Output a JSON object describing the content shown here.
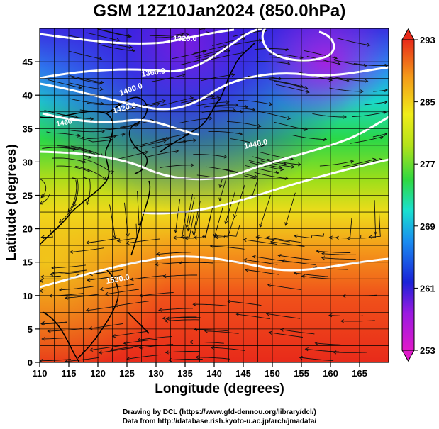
{
  "title": "GSM 12Z10Jan2024 (850.0hPa)",
  "map": {
    "xlabel": "Longitude (degrees)",
    "ylabel": "Latitude (degrees)",
    "x_ticks": [
      "110",
      "115",
      "120",
      "125",
      "130",
      "135",
      "140",
      "145",
      "150",
      "155",
      "160",
      "165"
    ],
    "y_ticks": [
      "0",
      "5",
      "10",
      "15",
      "20",
      "25",
      "30",
      "35",
      "40",
      "45"
    ],
    "xlim": [
      110,
      170
    ],
    "ylim": [
      0,
      50
    ],
    "contour_labels": [
      "1320.0",
      "1360.0",
      "1400.0",
      "1420.0",
      "1440.0",
      "1530.0"
    ],
    "contour_label_partial": "1460"
  },
  "colorbar": {
    "ticks": [
      "293",
      "285",
      "277",
      "269",
      "261",
      "253"
    ],
    "range": [
      253,
      293
    ]
  },
  "credits": {
    "line1": "Drawing by DCL (https://www.gfd-dennou.org/library/dcl/)",
    "line2": "Data from http://database.rish.kyoto-u.ac.jp/arch/jmadata/"
  }
}
